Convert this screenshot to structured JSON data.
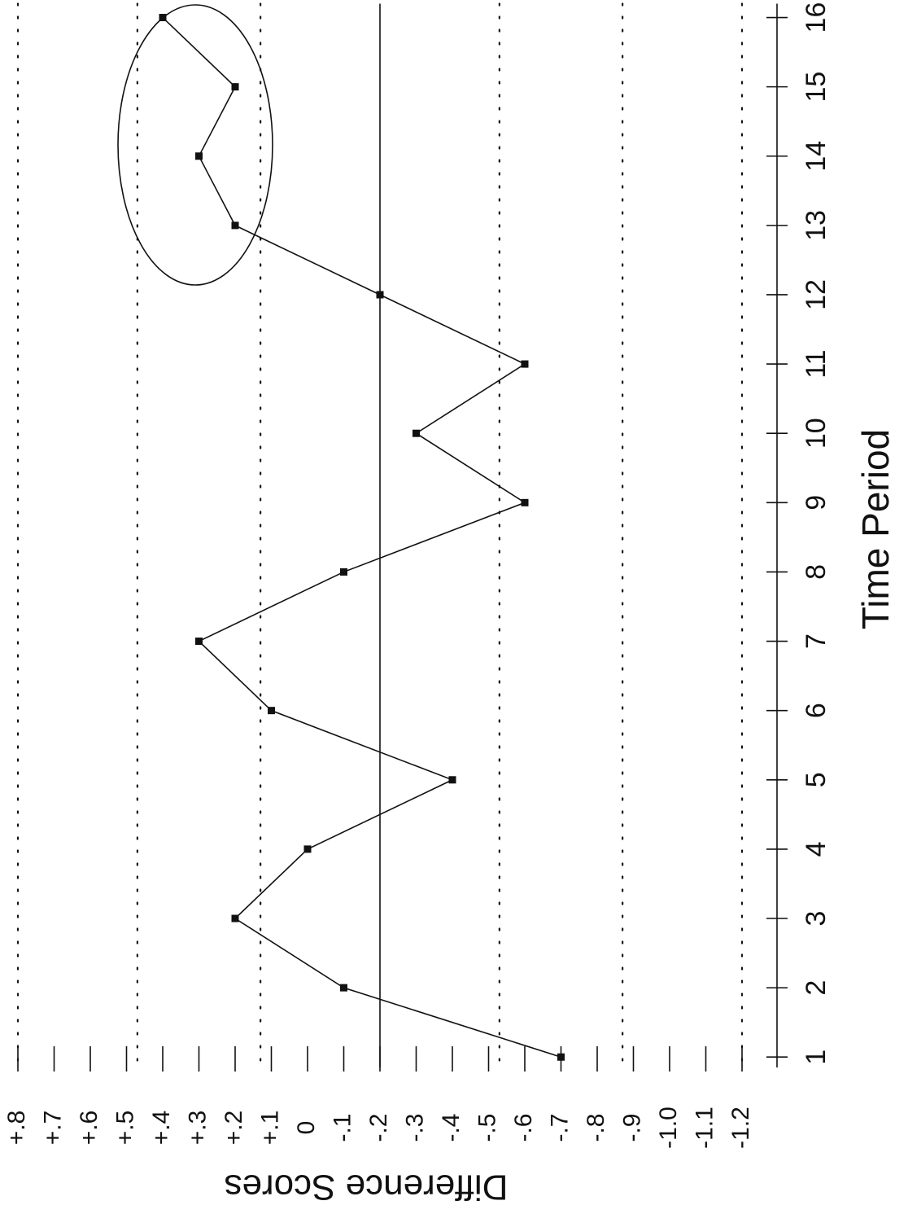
{
  "chart_data": {
    "type": "line",
    "x_label": "Time Period",
    "y_label": "Difference Scores",
    "x": [
      1,
      2,
      3,
      4,
      5,
      6,
      7,
      8,
      9,
      10,
      11,
      12,
      13,
      14,
      15,
      16
    ],
    "series": [
      {
        "color": "#111111",
        "values": [
          -0.7,
          -0.1,
          0.2,
          0,
          -0.4,
          0.1,
          0.3,
          -0.1,
          -0.6,
          -0.3,
          -0.6,
          -0.2,
          0.2,
          0.3,
          0.2,
          0.4
        ]
      }
    ],
    "xlim": [
      0.85,
      16.2
    ],
    "xticks": [
      1,
      2,
      3,
      4,
      5,
      6,
      7,
      8,
      9,
      10,
      11,
      12,
      13,
      14,
      15,
      16
    ],
    "ylim": [
      -1.2,
      0.8
    ],
    "yticks": [
      {
        "value": 0.8,
        "label": "+.8"
      },
      {
        "value": 0.7,
        "label": "+.7"
      },
      {
        "value": 0.6,
        "label": "+.6"
      },
      {
        "value": 0.5,
        "label": "+.5"
      },
      {
        "value": 0.4,
        "label": "+.4"
      },
      {
        "value": 0.3,
        "label": "+.3"
      },
      {
        "value": 0.2,
        "label": "+.2"
      },
      {
        "value": 0.1,
        "label": "+.1"
      },
      0,
      {
        "value": -0.1,
        "label": "-.1"
      },
      {
        "value": -0.2,
        "label": "-.2"
      },
      {
        "value": -0.3,
        "label": "-.3"
      },
      {
        "value": -0.4,
        "label": "-.4"
      },
      {
        "value": -0.5,
        "label": "-.5"
      },
      {
        "value": -0.6,
        "label": "-.6"
      },
      {
        "value": -0.7,
        "label": "-.7"
      },
      {
        "value": -0.8,
        "label": "-.8"
      },
      {
        "value": -0.9,
        "label": "-.9"
      },
      {
        "value": -1.0,
        "label": "-1.0"
      },
      {
        "value": -1.1,
        "label": "-1.1"
      },
      {
        "value": -1.2,
        "label": "-1.2"
      }
    ],
    "mean_line": -0.2,
    "limit_lines": [
      0.8,
      0.47,
      0.13,
      -0.53,
      -0.87,
      -1.2
    ]
  }
}
